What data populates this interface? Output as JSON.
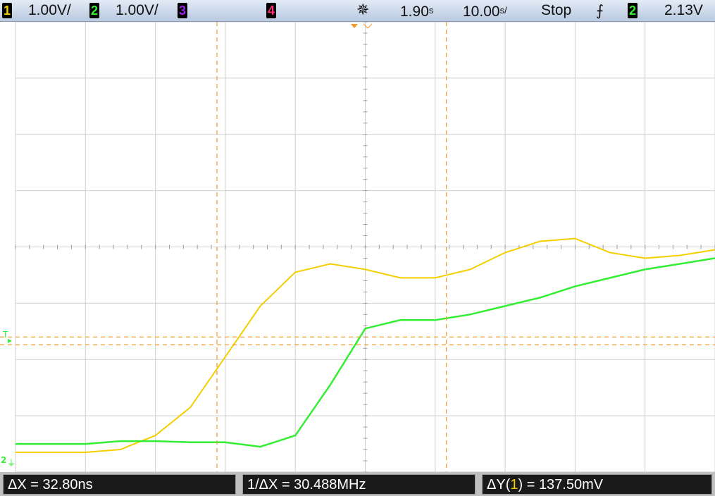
{
  "topbar": {
    "ch1_num": "1",
    "ch1_scale": "1.00V/",
    "ch2_num": "2",
    "ch2_scale": "1.00V/",
    "ch3_num": "3",
    "ch4_num": "4",
    "trigger_position": "1.90",
    "trigger_position_unit": "s",
    "timebase": "10.00",
    "timebase_unit": "s/",
    "run_state": "Stop",
    "trigger_edge_glyph": "⨍",
    "trigger_source": "2",
    "trigger_level": "2.13V"
  },
  "markers": {
    "trigger_level_marker": "T",
    "ground_marker": "2"
  },
  "measurements": {
    "delta_x": "ΔX = 32.80ns",
    "inverse_delta_x": "1/ΔX = 30.488MHz",
    "delta_y_prefix": "ΔY(",
    "delta_y_channel": "1",
    "delta_y_suffix": ") = 137.50mV"
  },
  "colors": {
    "ch1": "#f3ce00",
    "ch2": "#33ee33",
    "ch3": "#a020f0",
    "ch4": "#ff2d7a",
    "cursor": "#f39a2a",
    "grid": "#cfcfcf",
    "topbar_bg": "#c9d6ea"
  },
  "icons": {
    "channel_badge": "channel-number-badge",
    "acquisition": "sparkle-icon",
    "trigger_edge": "rising-edge-icon",
    "trigger_pointer": "orange-triangle-icon"
  },
  "chart_data": {
    "type": "line",
    "title": "",
    "xlabel": "",
    "ylabel": "",
    "grid": true,
    "x": [
      0,
      5,
      10,
      15,
      20,
      25,
      30,
      35,
      40,
      45,
      50,
      55,
      60,
      65,
      70,
      75,
      80,
      85,
      90,
      95,
      100
    ],
    "series": [
      {
        "name": "1",
        "values": [
          0.0,
          0.0,
          0.0,
          0.05,
          0.3,
          0.8,
          1.7,
          2.6,
          3.2,
          3.35,
          3.25,
          3.1,
          3.1,
          3.25,
          3.55,
          3.75,
          3.8,
          3.55,
          3.45,
          3.5,
          3.6
        ]
      },
      {
        "name": "2",
        "values": [
          0.15,
          0.15,
          0.15,
          0.2,
          0.2,
          0.18,
          0.18,
          0.1,
          0.3,
          1.2,
          2.2,
          2.35,
          2.35,
          2.45,
          2.6,
          2.75,
          2.95,
          3.1,
          3.25,
          3.35,
          3.45
        ]
      }
    ],
    "cursors": {
      "x1": 28.8,
      "x2": 61.6,
      "y1": 2.05,
      "y2": 1.91
    }
  }
}
